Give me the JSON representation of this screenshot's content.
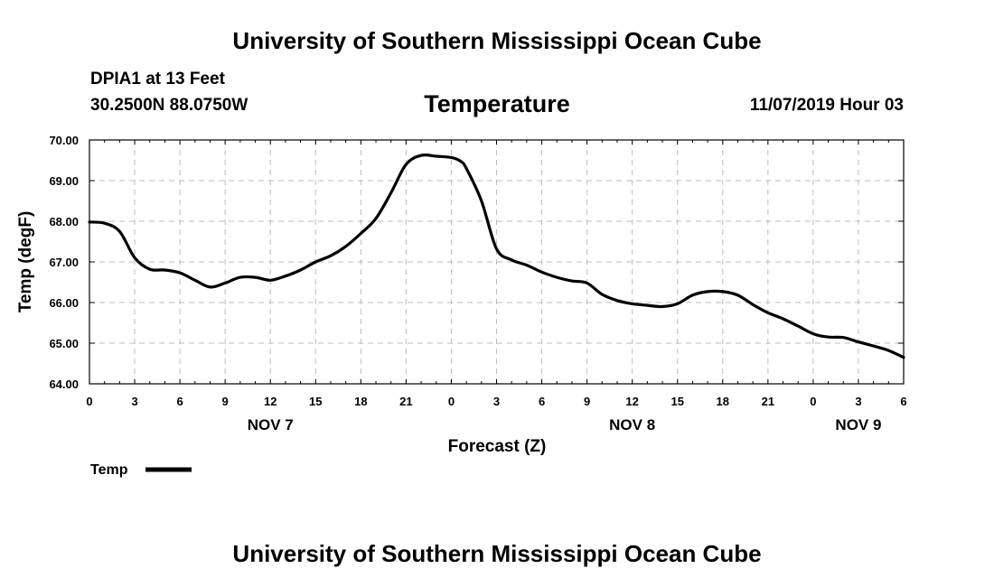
{
  "header": {
    "title": "University of Southern Mississippi Ocean Cube",
    "station": "DPIA1 at 13 Feet",
    "coords": "30.2500N 88.0750W",
    "timestamp": "11/07/2019 Hour 03"
  },
  "footer": {
    "title": "University of Southern Mississippi Ocean Cube"
  },
  "colors": {
    "line": "#000000",
    "grid": "#bdbdbd",
    "background": "#ffffff"
  },
  "chart_data": {
    "type": "line",
    "title": "Temperature",
    "xlabel": "Forecast (Z)",
    "ylabel": "Temp (degF)",
    "xlim": [
      0,
      54
    ],
    "ylim": [
      64.0,
      70.0
    ],
    "grid": true,
    "x_ticks": [
      0,
      3,
      6,
      9,
      12,
      15,
      18,
      21,
      24,
      27,
      30,
      33,
      36,
      39,
      42,
      45,
      48,
      51,
      54
    ],
    "x_tick_labels": [
      "0",
      "3",
      "6",
      "9",
      "12",
      "15",
      "18",
      "21",
      "0",
      "3",
      "6",
      "9",
      "12",
      "15",
      "18",
      "21",
      "0",
      "3",
      "6"
    ],
    "y_ticks": [
      64.0,
      65.0,
      66.0,
      67.0,
      68.0,
      69.0,
      70.0
    ],
    "y_tick_labels": [
      "64.00",
      "65.00",
      "66.00",
      "67.00",
      "68.00",
      "69.00",
      "70.00"
    ],
    "date_labels": [
      {
        "x": 12,
        "label": "NOV 7"
      },
      {
        "x": 36,
        "label": "NOV 8"
      },
      {
        "x": 51,
        "label": "NOV 9"
      }
    ],
    "legend": {
      "position": "bottom-left",
      "label": "Temp"
    },
    "series": [
      {
        "name": "Temp",
        "x": [
          0,
          1,
          2,
          3,
          4,
          5,
          6,
          7,
          8,
          9,
          10,
          11,
          12,
          13,
          14,
          15,
          16,
          17,
          18,
          19,
          20,
          21,
          22,
          23,
          24,
          24.6,
          25,
          26,
          27,
          28,
          29,
          30,
          31,
          32,
          33,
          34,
          35,
          36,
          37,
          38,
          39,
          40,
          41,
          42,
          43,
          44,
          45,
          46,
          47,
          48,
          49,
          50,
          51,
          52,
          53,
          54
        ],
        "values": [
          67.98,
          67.95,
          67.75,
          67.1,
          66.82,
          66.8,
          66.73,
          66.55,
          66.38,
          66.48,
          66.62,
          66.62,
          66.55,
          66.65,
          66.8,
          67.0,
          67.15,
          67.38,
          67.7,
          68.07,
          68.7,
          69.4,
          69.62,
          69.6,
          69.57,
          69.48,
          69.3,
          68.5,
          67.32,
          67.05,
          66.92,
          66.75,
          66.62,
          66.53,
          66.48,
          66.2,
          66.05,
          65.97,
          65.93,
          65.9,
          65.97,
          66.18,
          66.27,
          66.27,
          66.18,
          65.95,
          65.75,
          65.6,
          65.42,
          65.23,
          65.15,
          65.14,
          65.03,
          64.93,
          64.82,
          64.65
        ]
      }
    ]
  }
}
